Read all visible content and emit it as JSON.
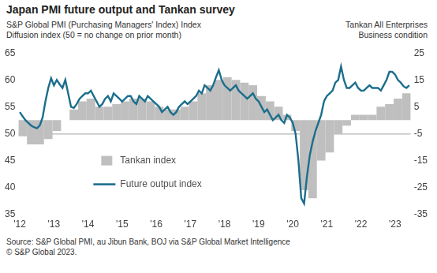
{
  "chart_data": {
    "type": "bar",
    "title": "Japan PMI future output and Tankan survey",
    "y_label": [
      "S&P Global PMI (Purchasing Managers' Index) Index",
      "Diffusion index (50 = no change on prior month)"
    ],
    "y2_label": [
      "Tankan All Enterprises",
      "Business condition"
    ],
    "source": [
      "Source: S&P Global PMI, au Jibun Bank, BOJ via S&P Global Market Intelligence",
      "© S&P Global 2023."
    ],
    "categories": [
      "'12",
      null,
      null,
      null,
      null,
      null,
      null,
      null,
      null,
      null,
      null,
      null,
      "'13",
      null,
      null,
      null,
      null,
      null,
      null,
      null,
      null,
      null,
      null,
      null,
      "'14",
      null,
      null,
      null,
      null,
      null,
      null,
      null,
      null,
      null,
      null,
      null,
      "'15",
      null,
      null,
      null,
      null,
      null,
      null,
      null,
      null,
      null,
      null,
      null,
      "'16",
      null,
      null,
      null,
      null,
      null,
      null,
      null,
      null,
      null,
      null,
      null,
      "'17",
      null,
      null,
      null,
      null,
      null,
      null,
      null,
      null,
      null,
      null,
      null,
      "'18",
      null,
      null,
      null,
      null,
      null,
      null,
      null,
      null,
      null,
      null,
      null,
      "'19",
      null,
      null,
      null,
      null,
      null,
      null,
      null,
      null,
      null,
      null,
      null,
      "'20",
      null,
      null,
      null,
      null,
      null,
      null,
      null,
      null,
      null,
      null,
      null,
      "'21",
      null,
      null,
      null,
      null,
      null,
      null,
      null,
      null,
      null,
      null,
      null,
      "'22",
      null,
      null,
      null,
      null,
      null,
      null,
      null,
      null,
      null,
      null,
      null,
      "'23",
      null,
      null,
      null,
      null,
      null
    ],
    "series": [
      {
        "name": "Tankan index",
        "type": "bar",
        "axis": "y2",
        "color": "#bfbfbf",
        "values": [
          null,
          -6,
          null,
          null,
          -9,
          null,
          null,
          -9,
          null,
          null,
          -7,
          null,
          null,
          -4,
          null,
          null,
          0,
          null,
          null,
          4,
          null,
          null,
          7,
          null,
          null,
          8,
          null,
          null,
          5,
          null,
          null,
          5,
          null,
          null,
          6,
          null,
          null,
          7,
          null,
          null,
          8,
          null,
          null,
          8,
          null,
          null,
          7,
          null,
          null,
          5,
          null,
          null,
          4,
          null,
          null,
          4,
          null,
          null,
          5,
          null,
          null,
          7,
          null,
          null,
          10,
          null,
          null,
          13,
          null,
          null,
          15,
          null,
          null,
          16,
          null,
          null,
          15,
          null,
          null,
          14,
          null,
          null,
          13,
          null,
          null,
          9,
          null,
          null,
          7,
          null,
          null,
          5,
          null,
          null,
          2,
          null,
          null,
          -4,
          null,
          null,
          -26,
          null,
          null,
          -29,
          null,
          null,
          -15,
          null,
          null,
          -12,
          null,
          null,
          -5,
          null,
          null,
          -2,
          null,
          null,
          2,
          null,
          null,
          2,
          null,
          null,
          2,
          null,
          null,
          5,
          null,
          null,
          6,
          null,
          null,
          8,
          null,
          null,
          10,
          null
        ]
      },
      {
        "name": "Future output index",
        "type": "line",
        "color": "#1b6e8c",
        "values": [
          54,
          53.2,
          52.5,
          52,
          51.5,
          51.2,
          51,
          51.5,
          53,
          56,
          58.5,
          60.3,
          59,
          60,
          59.2,
          58.5,
          60,
          57.5,
          55,
          54.8,
          55.5,
          56.5,
          57,
          57.5,
          57.5,
          58,
          57,
          56,
          55,
          55.5,
          56.5,
          57,
          56,
          57.5,
          57,
          56.5,
          56,
          56.5,
          57,
          57,
          56,
          55.5,
          57,
          56.5,
          56,
          57,
          56.5,
          56,
          55.5,
          55,
          54,
          54.5,
          55,
          54,
          53.5,
          54,
          55,
          55.5,
          56,
          55.5,
          56,
          56.5,
          57,
          58,
          57.5,
          59,
          58.5,
          58,
          59,
          60.5,
          61.8,
          60,
          59,
          58.5,
          58,
          58.5,
          59,
          58,
          57.5,
          57,
          56.5,
          57,
          57.5,
          56.5,
          56,
          55,
          54,
          54.5,
          53.5,
          52.5,
          53,
          53.5,
          52.5,
          52,
          53.5,
          53,
          52,
          50,
          45,
          38,
          37,
          42,
          46,
          48.5,
          50.5,
          52,
          53.5,
          56,
          57,
          57.5,
          58,
          59.5,
          60,
          62.5,
          60,
          58.5,
          58.5,
          59,
          59.5,
          58.5,
          58,
          58,
          58.5,
          59,
          58.5,
          58.5,
          58.5,
          58,
          59,
          60,
          61.5,
          61.5,
          61,
          60,
          59.5,
          58.8,
          58.5,
          59
        ]
      }
    ],
    "ylim": [
      35,
      65
    ],
    "yticks": [
      35,
      40,
      45,
      50,
      55,
      60,
      65
    ],
    "y2lim": [
      -35,
      25
    ],
    "y2ticks": [
      -35,
      -25,
      -15,
      -5,
      5,
      15,
      25
    ],
    "reference_line": 50,
    "grid": false,
    "legend": "lower left"
  }
}
